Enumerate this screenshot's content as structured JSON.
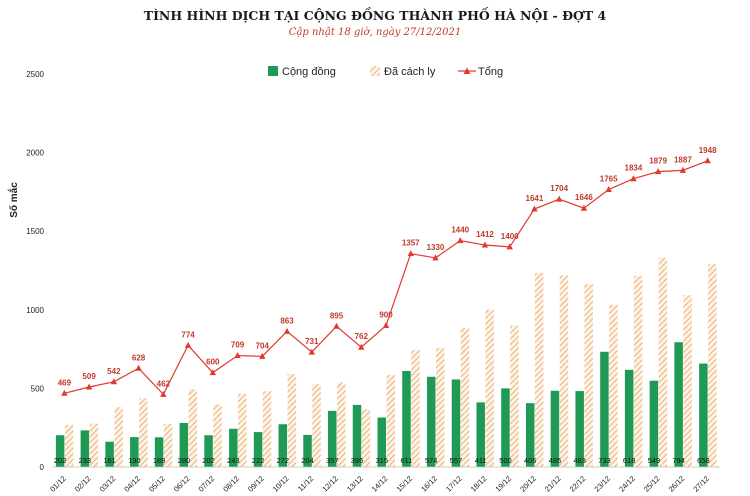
{
  "header": {
    "title": "TÌNH HÌNH DỊCH TẠI CỘNG ĐỒNG THÀNH PHỐ HÀ NỘI - ĐỢT 4",
    "subtitle": "Cập nhật 18 giờ, ngày 27/12/2021"
  },
  "colors": {
    "community": "#1f9a55",
    "quarantined": "#e9b27a",
    "total": "#e03a2f"
  },
  "chart_data": {
    "type": "bar",
    "title": "TÌNH HÌNH DỊCH TẠI CỘNG ĐỒNG THÀNH PHỐ HÀ NỘI - ĐỢT 4",
    "subtitle": "Cập nhật 18 giờ, ngày 27/12/2021",
    "xlabel": "",
    "ylabel": "Số mắc",
    "ylim": [
      0,
      2500
    ],
    "yticks": [
      0,
      500,
      1000,
      1500,
      2000,
      2500
    ],
    "grid": false,
    "legend_position": "top-center",
    "categories": [
      "01/12",
      "02/12",
      "03/12",
      "04/12",
      "05/12",
      "06/12",
      "07/12",
      "08/12",
      "09/12",
      "10/12",
      "11/12",
      "12/12",
      "13/12",
      "14/12",
      "15/12",
      "16/12",
      "17/12",
      "18/12",
      "19/12",
      "20/12",
      "21/12",
      "22/12",
      "23/12",
      "24/12",
      "25/12",
      "26/12",
      "27/12"
    ],
    "series": [
      {
        "name": "Cộng đồng",
        "type": "bar",
        "values": [
          202,
          233,
          161,
          190,
          189,
          280,
          202,
          243,
          222,
          272,
          204,
          357,
          395,
          315,
          611,
          574,
          557,
          411,
          500,
          406,
          485,
          483,
          733,
          618,
          549,
          794,
          658
        ]
      },
      {
        "name": "Đã cách ly",
        "type": "bar",
        "values": [
          267,
          276,
          381,
          438,
          273,
          494,
          398,
          466,
          482,
          591,
          527,
          538,
          367,
          585,
          746,
          756,
          883,
          1001,
          900,
          1235,
          1219,
          1163,
          1032,
          1216,
          1330,
          1093,
          1290
        ]
      },
      {
        "name": "Tổng",
        "type": "line",
        "values": [
          469,
          509,
          542,
          628,
          462,
          774,
          600,
          709,
          704,
          863,
          731,
          895,
          762,
          900,
          1357,
          1330,
          1440,
          1412,
          1400,
          1641,
          1704,
          1646,
          1765,
          1834,
          1879,
          1887,
          1948
        ]
      }
    ]
  }
}
